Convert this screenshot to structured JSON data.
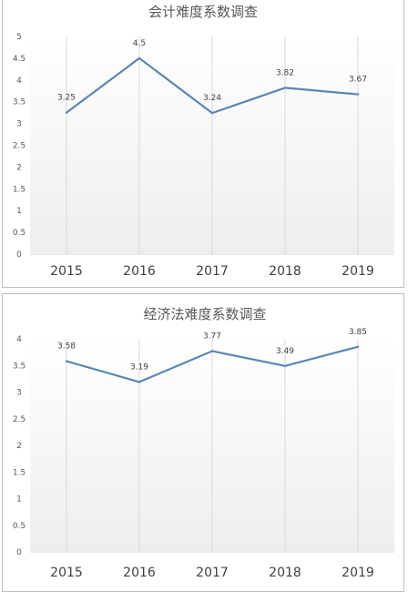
{
  "chart_data": [
    {
      "type": "line",
      "title": "会计难度系数调查",
      "categories": [
        "2015",
        "2016",
        "2017",
        "2018",
        "2019"
      ],
      "values": [
        3.25,
        4.5,
        3.24,
        3.82,
        3.67
      ],
      "data_labels": [
        "3.25",
        "4.5",
        "3.24",
        "3.82",
        "3.67"
      ],
      "ylim": [
        0,
        5
      ],
      "y_ticks": [
        "0",
        "0.5",
        "1",
        "1.5",
        "2",
        "2.5",
        "3",
        "3.5",
        "4",
        "4.5",
        "5"
      ],
      "xlabel": "",
      "ylabel": "",
      "line_color": "#5b86b5",
      "grid": "vertical",
      "legend": "none"
    },
    {
      "type": "line",
      "title": "经济法难度系数调查",
      "categories": [
        "2015",
        "2016",
        "2017",
        "2018",
        "2019"
      ],
      "values": [
        3.58,
        3.19,
        3.77,
        3.49,
        3.85
      ],
      "data_labels": [
        "3.58",
        "3.19",
        "3.77",
        "3.49",
        "3.85"
      ],
      "ylim": [
        0,
        4
      ],
      "y_ticks": [
        "0",
        "0.5",
        "1",
        "1.5",
        "2",
        "2.5",
        "3",
        "3.5",
        "4"
      ],
      "xlabel": "",
      "ylabel": "",
      "line_color": "#5b86b5",
      "grid": "vertical",
      "legend": "none"
    }
  ]
}
